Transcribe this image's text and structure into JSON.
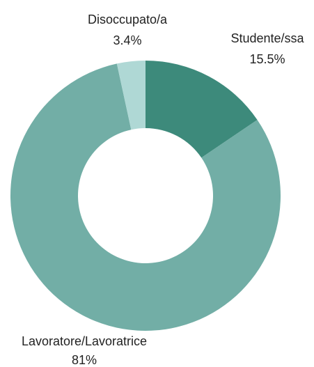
{
  "chart_data": {
    "type": "pie",
    "donut": true,
    "slices": [
      {
        "label": "Studente/ssa",
        "value_label": "15.5%",
        "value": 15.5,
        "color": "#3d8a7b"
      },
      {
        "label": "Lavoratore/Lavoratrice",
        "value_label": "81%",
        "value": 81.0,
        "color": "#72aea6"
      },
      {
        "label": "Disoccupato/a",
        "value_label": "3.4%",
        "value": 3.4,
        "color": "#afd8d5"
      }
    ],
    "title": "",
    "start_angle_deg": 0,
    "direction": "clockwise",
    "legend": "none"
  }
}
